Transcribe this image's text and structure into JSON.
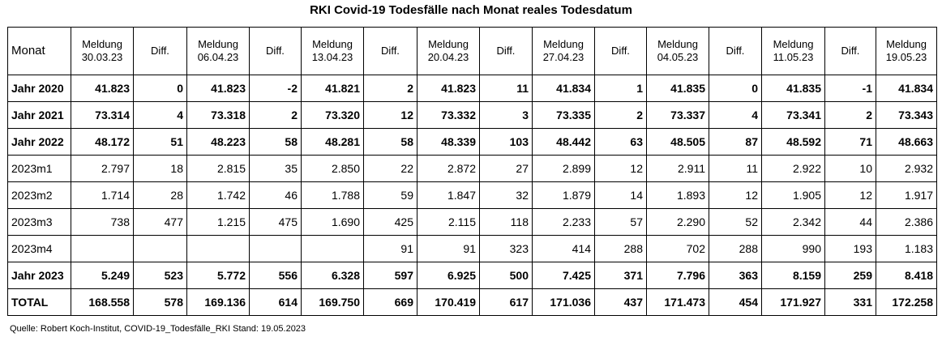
{
  "title": "RKI Covid-19 Todesfälle nach Monat reales Todesdatum",
  "table": {
    "headers": [
      {
        "line1": "Monat",
        "line2": ""
      },
      {
        "line1": "Meldung",
        "line2": "30.03.23"
      },
      {
        "line1": "Diff.",
        "line2": ""
      },
      {
        "line1": "Meldung",
        "line2": "06.04.23"
      },
      {
        "line1": "Diff.",
        "line2": ""
      },
      {
        "line1": "Meldung",
        "line2": "13.04.23"
      },
      {
        "line1": "Diff.",
        "line2": ""
      },
      {
        "line1": "Meldung",
        "line2": "20.04.23"
      },
      {
        "line1": "Diff.",
        "line2": ""
      },
      {
        "line1": "Meldung",
        "line2": "27.04.23"
      },
      {
        "line1": "Diff.",
        "line2": ""
      },
      {
        "line1": "Meldung",
        "line2": "04.05.23"
      },
      {
        "line1": "Diff.",
        "line2": ""
      },
      {
        "line1": "Meldung",
        "line2": "11.05.23"
      },
      {
        "line1": "Diff.",
        "line2": ""
      },
      {
        "line1": "Meldung",
        "line2": "19.05.23"
      }
    ],
    "rows": [
      {
        "bold": true,
        "cells": [
          "Jahr 2020",
          "41.823",
          "0",
          "41.823",
          "-2",
          "41.821",
          "2",
          "41.823",
          "11",
          "41.834",
          "1",
          "41.835",
          "0",
          "41.835",
          "-1",
          "41.834"
        ]
      },
      {
        "bold": true,
        "cells": [
          "Jahr 2021",
          "73.314",
          "4",
          "73.318",
          "2",
          "73.320",
          "12",
          "73.332",
          "3",
          "73.335",
          "2",
          "73.337",
          "4",
          "73.341",
          "2",
          "73.343"
        ]
      },
      {
        "bold": true,
        "cells": [
          "Jahr 2022",
          "48.172",
          "51",
          "48.223",
          "58",
          "48.281",
          "58",
          "48.339",
          "103",
          "48.442",
          "63",
          "48.505",
          "87",
          "48.592",
          "71",
          "48.663"
        ]
      },
      {
        "bold": false,
        "cells": [
          "2023m1",
          "2.797",
          "18",
          "2.815",
          "35",
          "2.850",
          "22",
          "2.872",
          "27",
          "2.899",
          "12",
          "2.911",
          "11",
          "2.922",
          "10",
          "2.932"
        ]
      },
      {
        "bold": false,
        "cells": [
          "2023m2",
          "1.714",
          "28",
          "1.742",
          "46",
          "1.788",
          "59",
          "1.847",
          "32",
          "1.879",
          "14",
          "1.893",
          "12",
          "1.905",
          "12",
          "1.917"
        ]
      },
      {
        "bold": false,
        "cells": [
          "2023m3",
          "738",
          "477",
          "1.215",
          "475",
          "1.690",
          "425",
          "2.115",
          "118",
          "2.233",
          "57",
          "2.290",
          "52",
          "2.342",
          "44",
          "2.386"
        ]
      },
      {
        "bold": false,
        "cells": [
          "2023m4",
          "",
          "",
          "",
          "",
          "",
          "91",
          "91",
          "323",
          "414",
          "288",
          "702",
          "288",
          "990",
          "193",
          "1.183"
        ]
      },
      {
        "bold": true,
        "cells": [
          "Jahr 2023",
          "5.249",
          "523",
          "5.772",
          "556",
          "6.328",
          "597",
          "6.925",
          "500",
          "7.425",
          "371",
          "7.796",
          "363",
          "8.159",
          "259",
          "8.418"
        ]
      },
      {
        "bold": true,
        "cells": [
          "TOTAL",
          "168.558",
          "578",
          "169.136",
          "614",
          "169.750",
          "669",
          "170.419",
          "617",
          "171.036",
          "437",
          "171.473",
          "454",
          "171.927",
          "331",
          "172.258"
        ]
      }
    ]
  },
  "source": "Quelle: Robert Koch-Institut, COVID-19_Todesfälle_RKI Stand: 19.05.2023"
}
